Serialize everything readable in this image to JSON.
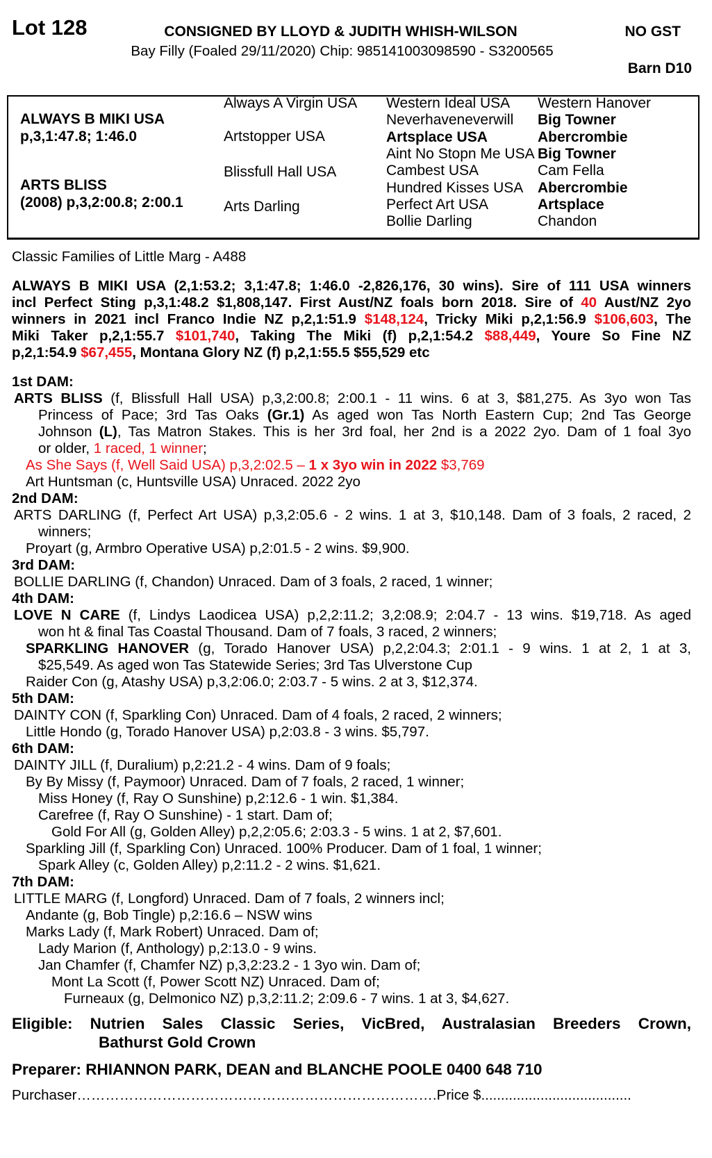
{
  "header": {
    "lot": "Lot 128",
    "consignor": "CONSIGNED BY LLOYD & JUDITH WHISH-WILSON",
    "description": "Bay Filly (Foaled 29/11/2020) Chip: 985141003098590 - S3200565",
    "gst": "NO GST",
    "barn": "Barn D10"
  },
  "colors": {
    "highlight": "#e8141c",
    "text": "#000000"
  },
  "pedigree": {
    "sire": {
      "name": "ALWAYS B MIKI USA",
      "record": "p,3,1:47.8; 1:46.0"
    },
    "dam": {
      "name": "ARTS BLISS",
      "record": "(2008) p,3,2:00.8; 2:00.1"
    },
    "gen2": [
      "Always A Virgin USA",
      "Artstopper USA",
      "Blissfull Hall USA",
      "Arts Darling"
    ],
    "gen3": [
      {
        "text": "Western Ideal USA",
        "bold": false
      },
      {
        "text": "Neverhaveneverwill",
        "bold": false
      },
      {
        "text": "Artsplace USA",
        "bold": true
      },
      {
        "text": "Aint No Stopn Me USA",
        "bold": false
      },
      {
        "text": "Cambest USA",
        "bold": false
      },
      {
        "text": "Hundred Kisses USA",
        "bold": false
      },
      {
        "text": "Perfect Art USA",
        "bold": false
      },
      {
        "text": "Bollie Darling",
        "bold": false
      }
    ],
    "gen4": [
      {
        "text": "Western Hanover",
        "bold": false
      },
      {
        "text": "Big Towner",
        "bold": true
      },
      {
        "text": "Abercrombie",
        "bold": true
      },
      {
        "text": "Big Towner",
        "bold": true
      },
      {
        "text": "Cam Fella",
        "bold": false
      },
      {
        "text": "Abercrombie",
        "bold": true
      },
      {
        "text": "Artsplace",
        "bold": true
      },
      {
        "text": "Chandon",
        "bold": false
      }
    ]
  },
  "family": "Classic Families of Little Marg - A488",
  "sire_paragraph": [
    [
      [
        "ALWAYS B MIKI USA (2,1:53.2; 3,1:47.8; 1:46.0 -2,826,176, 30 wins). Sire of 111 USA winners",
        ""
      ]
    ],
    [
      [
        "incl Perfect Sting p,3,1:48.2 $1,808,147. First Aust/NZ foals born 2018. Sire of ",
        ""
      ],
      [
        "40",
        "r"
      ],
      [
        " Aust/NZ 2yo",
        ""
      ]
    ],
    [
      [
        "winners in 2021 incl Franco Indie NZ p,2,1:51.9 ",
        ""
      ],
      [
        "$148,124",
        "r"
      ],
      [
        ", Tricky Miki p,2,1:56.9 ",
        ""
      ],
      [
        "$106,603",
        "r"
      ],
      [
        ", The",
        ""
      ]
    ],
    [
      [
        "Miki Taker p,2,1:55.7 ",
        ""
      ],
      [
        "$101,740",
        "r"
      ],
      [
        ", Taking The Miki (f) p,2,1:54.2 ",
        ""
      ],
      [
        "$88,449",
        "r"
      ],
      [
        ", Youre So Fine NZ",
        ""
      ]
    ],
    [
      [
        "p,2,1:54.9 ",
        ""
      ],
      [
        "$67,455",
        "r"
      ],
      [
        ", Montana Glory NZ (f) p,2,1:55.5 $55,529 etc",
        ""
      ]
    ]
  ],
  "dams": [
    {
      "heading": "1st DAM:",
      "lines": [
        {
          "indent": 1,
          "justify": true,
          "segs": [
            [
              "ARTS BLISS",
              "b"
            ],
            [
              " (f, Blissfull Hall USA) p,3,2:00.8; 2:00.1 - 11 wins. 6 at 3, $81,275. As 3yo won Tas",
              ""
            ]
          ]
        },
        {
          "indent": 3,
          "justify": true,
          "segs": [
            [
              "Princess of Pace; 3rd Tas Oaks ",
              ""
            ],
            [
              "(Gr.1)",
              "b"
            ],
            [
              " As aged won Tas North Eastern Cup; 2nd Tas George",
              ""
            ]
          ]
        },
        {
          "indent": 3,
          "justify": true,
          "segs": [
            [
              "Johnson ",
              ""
            ],
            [
              "(L)",
              "b"
            ],
            [
              ", Tas Matron Stakes. This is her 3rd foal, her 2nd is a 2022 2yo. Dam of 1 foal 3yo",
              ""
            ]
          ]
        },
        {
          "indent": 3,
          "justify": false,
          "segs": [
            [
              "or older, ",
              ""
            ],
            [
              "1 raced, 1 winner",
              "r"
            ],
            [
              ";",
              ""
            ]
          ]
        },
        {
          "indent": 2,
          "justify": false,
          "segs": [
            [
              "As She Says (f, Well Said USA) p,3,2:02.5 – ",
              "r"
            ],
            [
              "1 x 3yo win in 2022",
              "rb"
            ],
            [
              " $3,769",
              "r"
            ]
          ]
        },
        {
          "indent": 2,
          "justify": false,
          "segs": [
            [
              "Art Huntsman (c, Huntsville USA) Unraced. 2022 2yo",
              ""
            ]
          ]
        }
      ]
    },
    {
      "heading": "2nd DAM:",
      "lines": [
        {
          "indent": 1,
          "justify": true,
          "segs": [
            [
              "ARTS DARLING (f, Perfect Art USA) p,3,2:05.6 - 2 wins. 1 at 3, $10,148. Dam of 3 foals, 2 raced, 2",
              ""
            ]
          ]
        },
        {
          "indent": 3,
          "justify": false,
          "segs": [
            [
              "winners;",
              ""
            ]
          ]
        },
        {
          "indent": 2,
          "justify": false,
          "segs": [
            [
              "Proyart (g, Armbro Operative USA) p,2:01.5 - 2 wins. $9,900.",
              ""
            ]
          ]
        }
      ]
    },
    {
      "heading": "3rd DAM:",
      "lines": [
        {
          "indent": 1,
          "justify": false,
          "segs": [
            [
              "BOLLIE DARLING (f, Chandon) Unraced. Dam of 3 foals, 2 raced, 1 winner;",
              ""
            ]
          ]
        }
      ]
    },
    {
      "heading": "4th DAM:",
      "lines": [
        {
          "indent": 1,
          "justify": true,
          "segs": [
            [
              "LOVE N CARE",
              "b"
            ],
            [
              " (f, Lindys Laodicea USA) p,2,2:11.2; 3,2:08.9; 2:04.7 - 13 wins. $19,718. As aged",
              ""
            ]
          ]
        },
        {
          "indent": 3,
          "justify": false,
          "segs": [
            [
              "won ht & final Tas Coastal Thousand. Dam of 7 foals, 3 raced, 2 winners;",
              ""
            ]
          ]
        },
        {
          "indent": 2,
          "justify": true,
          "segs": [
            [
              "SPARKLING HANOVER",
              "b"
            ],
            [
              " (g, Torado Hanover USA) p,2,2:04.3; 2:01.1 - 9 wins. 1 at 2, 1 at 3,",
              ""
            ]
          ]
        },
        {
          "indent": 3,
          "justify": false,
          "segs": [
            [
              "$25,549. As aged won Tas Statewide Series; 3rd Tas Ulverstone Cup",
              ""
            ]
          ]
        },
        {
          "indent": 2,
          "justify": false,
          "segs": [
            [
              "Raider Con (g, Atashy USA) p,3,2:06.0; 2:03.7 - 5 wins. 2 at 3, $12,374.",
              ""
            ]
          ]
        }
      ]
    },
    {
      "heading": "5th DAM:",
      "lines": [
        {
          "indent": 1,
          "justify": false,
          "segs": [
            [
              "DAINTY CON (f, Sparkling Con) Unraced. Dam of 4 foals, 2 raced, 2 winners;",
              ""
            ]
          ]
        },
        {
          "indent": 2,
          "justify": false,
          "segs": [
            [
              "Little Hondo (g, Torado Hanover USA) p,2:03.8 - 3 wins. $5,797.",
              ""
            ]
          ]
        }
      ]
    },
    {
      "heading": "6th DAM:",
      "lines": [
        {
          "indent": 1,
          "justify": false,
          "segs": [
            [
              "DAINTY JILL (f, Duralium) p,2:21.2 - 4 wins. Dam of 9 foals;",
              ""
            ]
          ]
        },
        {
          "indent": 2,
          "justify": false,
          "segs": [
            [
              "By By Missy (f, Paymoor) Unraced. Dam of 7 foals, 2 raced, 1 winner;",
              ""
            ]
          ]
        },
        {
          "indent": 4,
          "justify": false,
          "segs": [
            [
              "Miss Honey (f, Ray O Sunshine) p,2:12.6 - 1 win. $1,384.",
              ""
            ]
          ]
        },
        {
          "indent": 4,
          "justify": false,
          "segs": [
            [
              "Carefree (f, Ray O Sunshine)  - 1 start. Dam of;",
              ""
            ]
          ]
        },
        {
          "indent": 5,
          "justify": false,
          "segs": [
            [
              "Gold For All (g, Golden Alley) p,2,2:05.6; 2:03.3 - 5 wins. 1 at 2, $7,601.",
              ""
            ]
          ]
        },
        {
          "indent": 2,
          "justify": false,
          "segs": [
            [
              "Sparkling Jill (f, Sparkling Con) Unraced. 100% Producer. Dam of 1 foal, 1 winner;",
              ""
            ]
          ]
        },
        {
          "indent": 4,
          "justify": false,
          "segs": [
            [
              "Spark Alley (c, Golden Alley) p,2:11.2 - 2 wins. $1,621.",
              ""
            ]
          ]
        }
      ]
    },
    {
      "heading": "7th DAM:",
      "lines": [
        {
          "indent": 1,
          "justify": false,
          "segs": [
            [
              "LITTLE MARG (f, Longford) Unraced. Dam of 7 foals, 2 winners incl;",
              ""
            ]
          ]
        },
        {
          "indent": 2,
          "justify": false,
          "segs": [
            [
              "Andante (g, Bob Tingle) p,2:16.6 – NSW wins",
              ""
            ]
          ]
        },
        {
          "indent": 2,
          "justify": false,
          "segs": [
            [
              "Marks Lady (f, Mark Robert) Unraced. Dam of;",
              ""
            ]
          ]
        },
        {
          "indent": 4,
          "justify": false,
          "segs": [
            [
              "Lady Marion (f, Anthology) p,2:13.0 - 9 wins.",
              ""
            ]
          ]
        },
        {
          "indent": 4,
          "justify": false,
          "segs": [
            [
              "Jan Chamfer (f, Chamfer NZ) p,3,2:23.2 - 1 3yo win. Dam of;",
              ""
            ]
          ]
        },
        {
          "indent": 5,
          "justify": false,
          "segs": [
            [
              "Mont La Scott (f, Power Scott NZ) Unraced. Dam of;",
              ""
            ]
          ]
        },
        {
          "indent": 6,
          "justify": false,
          "segs": [
            [
              "Furneaux (g, Delmonico NZ) p,3,2:11.2; 2:09.6 - 7 wins. 1 at 3, $4,627.",
              ""
            ]
          ]
        }
      ]
    }
  ],
  "eligible": {
    "line1": "Eligible: Nutrien Sales Classic Series, VicBred, Australasian Breeders Crown,",
    "line2": "Bathurst Gold Crown"
  },
  "preparer": "Preparer: RHIANNON PARK, DEAN and BLANCHE POOLE 0400 648 710",
  "purchaser": {
    "label": "Purchaser………………………………………………………………….",
    "price_label": "Price $......................................"
  }
}
